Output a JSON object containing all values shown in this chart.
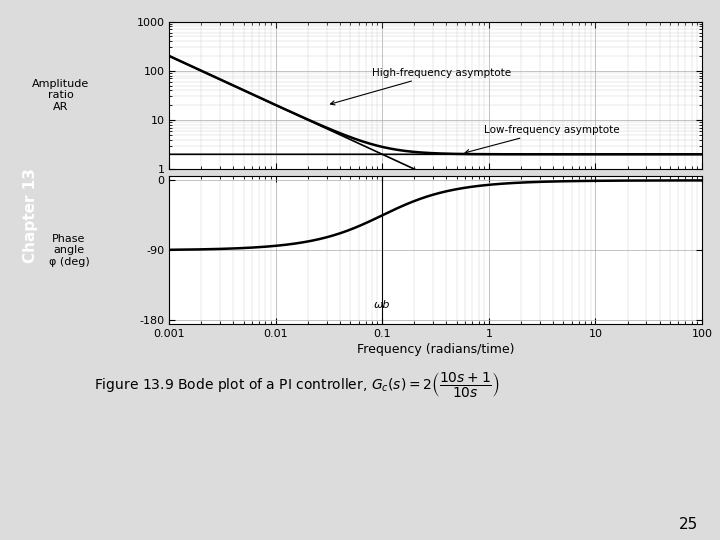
{
  "page_number": "25",
  "chapter_label": "Chapter 13",
  "chapter_bg_color": "#3333aa",
  "chapter_text_color": "#ffffff",
  "freq_min": 0.001,
  "freq_max": 100,
  "Kc": 2.0,
  "tau_I": 10.0,
  "xlabel": "Frequency (radians/time)",
  "ylabel_mag": "Amplitude\nratio\nAR",
  "ylabel_phase": "Phase\nangle\nφ (deg)",
  "mag_yticks": [
    1,
    10,
    100,
    1000
  ],
  "mag_ylim": [
    1,
    1000
  ],
  "phase_yticks": [
    -180,
    -90,
    0
  ],
  "phase_ylim": [
    -185,
    5
  ],
  "annotation_hf": "High-frequency asymptote",
  "annotation_lf": "Low-frequency asymptote",
  "annotation_wb": "ωb",
  "background_color": "#dcdcdc",
  "plot_bg_color": "#ffffff",
  "line_color": "#000000",
  "grid_color": "#888888",
  "caption": "Figure 13.9 Bode plot of a PI controller, ",
  "xtick_labels": [
    "0.001",
    "0.01",
    "0.1",
    "1",
    "10",
    "100"
  ]
}
